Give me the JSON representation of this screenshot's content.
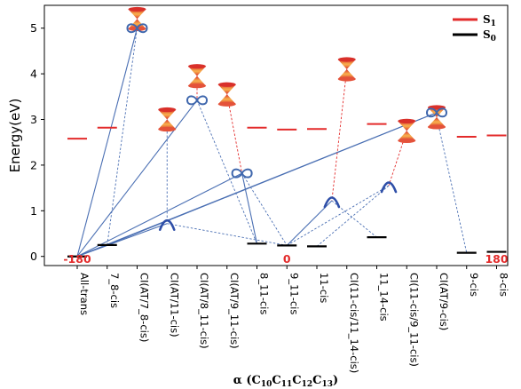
{
  "chart_data": {
    "type": "line",
    "xlabel": {
      "text": "α (C",
      "subs": [
        "10",
        "11",
        "12",
        "13"
      ]
    },
    "ylabel": "Energy(eV)",
    "ylim": [
      -0.2,
      5.5
    ],
    "yticks": [
      0,
      1,
      2,
      3,
      4,
      5
    ],
    "grid": false,
    "legend_position": "top-right",
    "legend": [
      {
        "label": "S",
        "sub": "1",
        "color": "#e32b2b"
      },
      {
        "label": "S",
        "sub": "0",
        "color": "#000000"
      }
    ],
    "colors": {
      "s1": "#e32b2b",
      "s0": "#000000",
      "link": "#4a6fb3",
      "red_text": "#e32b2b"
    },
    "categories": [
      {
        "label": "All-trans",
        "color": "black"
      },
      {
        "label": "7_8-cis",
        "color": "black"
      },
      {
        "label": "CI(AT/7_8-cis)",
        "color": "red"
      },
      {
        "label": "CI(AT/11-cis)",
        "color": "red"
      },
      {
        "label": "CI(AT/8_11-cis)",
        "color": "red"
      },
      {
        "label": "CI(AT/9_11-cis)",
        "color": "red"
      },
      {
        "label": "8_11-cis",
        "color": "black"
      },
      {
        "label": "9_11-cis",
        "color": "black"
      },
      {
        "label": "11-cis",
        "color": "black"
      },
      {
        "label": "CI(11-cis/11_14-cis)",
        "color": "red"
      },
      {
        "label": "11_14-cis",
        "color": "black"
      },
      {
        "label": "CI(11-cis/9_11-cis)",
        "color": "red"
      },
      {
        "label": "CI(AT/9-cis)",
        "color": "red"
      },
      {
        "label": "9-cis",
        "color": "black"
      },
      {
        "label": "8-cis",
        "color": "black"
      }
    ],
    "s0_levels": [
      {
        "x": 0,
        "y": 0.0
      },
      {
        "x": 1,
        "y": 0.25
      },
      {
        "x": 6,
        "y": 0.28
      },
      {
        "x": 7,
        "y": 0.24
      },
      {
        "x": 8,
        "y": 0.22
      },
      {
        "x": 10,
        "y": 0.42
      },
      {
        "x": 13,
        "y": 0.08
      },
      {
        "x": 14,
        "y": 0.1
      }
    ],
    "s1_levels": [
      {
        "x": 0,
        "y": 2.58
      },
      {
        "x": 1,
        "y": 2.82
      },
      {
        "x": 6,
        "y": 2.82
      },
      {
        "x": 7,
        "y": 2.78
      },
      {
        "x": 8,
        "y": 2.79
      },
      {
        "x": 10,
        "y": 2.9
      },
      {
        "x": 13,
        "y": 2.62
      },
      {
        "x": 14,
        "y": 2.65
      }
    ],
    "conical_intersections": [
      {
        "x": 2,
        "y": 5.2
      },
      {
        "x": 3,
        "y": 3.0
      },
      {
        "x": 4,
        "y": 3.95
      },
      {
        "x": 5,
        "y": 3.55
      },
      {
        "x": 9,
        "y": 4.1
      },
      {
        "x": 11,
        "y": 2.75
      },
      {
        "x": 12,
        "y": 3.05
      }
    ],
    "transition_states": [
      {
        "type": "infinity",
        "x": 2,
        "y": 5.0
      },
      {
        "type": "arch",
        "x": 3,
        "y": 0.72
      },
      {
        "type": "infinity",
        "x": 4,
        "y": 3.42
      },
      {
        "type": "infinity",
        "x": 5.5,
        "y": 1.82
      },
      {
        "type": "arch",
        "x": 8.5,
        "y": 1.22
      },
      {
        "type": "arch",
        "x": 10.4,
        "y": 1.55
      },
      {
        "type": "infinity",
        "x": 12,
        "y": 3.15
      }
    ],
    "solid_links": [
      {
        "from": [
          0,
          0.0
        ],
        "to": [
          2,
          5.0
        ]
      },
      {
        "from": [
          0,
          0.0
        ],
        "to": [
          4,
          3.42
        ]
      },
      {
        "from": [
          0,
          0.0
        ],
        "to": [
          5.5,
          1.82
        ]
      },
      {
        "from": [
          0,
          0.0
        ],
        "to": [
          3,
          0.72
        ]
      },
      {
        "from": [
          0,
          0.0
        ],
        "to": [
          12,
          3.15
        ]
      },
      {
        "from": [
          0,
          0.0
        ],
        "to": [
          1,
          0.25
        ]
      },
      {
        "from": [
          1,
          0.25
        ],
        "to": [
          12,
          3.15
        ]
      },
      {
        "from": [
          5.5,
          1.82
        ],
        "to": [
          6,
          0.28
        ]
      },
      {
        "from": [
          7,
          0.24
        ],
        "to": [
          8.5,
          1.22
        ]
      }
    ],
    "dashed_links": [
      {
        "from": [
          1,
          0.25
        ],
        "to": [
          2,
          5.0
        ],
        "color": "link"
      },
      {
        "from": [
          2,
          5.2
        ],
        "to": [
          2,
          5.0
        ],
        "color": "red"
      },
      {
        "from": [
          3,
          3.0
        ],
        "to": [
          3,
          0.72
        ],
        "color": "link"
      },
      {
        "from": [
          4,
          3.95
        ],
        "to": [
          4,
          3.42
        ],
        "color": "red"
      },
      {
        "from": [
          4,
          3.42
        ],
        "to": [
          6,
          0.28
        ],
        "color": "link"
      },
      {
        "from": [
          5,
          3.55
        ],
        "to": [
          5.5,
          1.82
        ],
        "color": "red"
      },
      {
        "from": [
          5.5,
          1.82
        ],
        "to": [
          7,
          0.24
        ],
        "color": "link"
      },
      {
        "from": [
          3,
          0.72
        ],
        "to": [
          7,
          0.24
        ],
        "color": "link"
      },
      {
        "from": [
          9,
          4.1
        ],
        "to": [
          8.5,
          1.22
        ],
        "color": "red"
      },
      {
        "from": [
          8.5,
          1.22
        ],
        "to": [
          10,
          0.42
        ],
        "color": "link"
      },
      {
        "from": [
          11,
          2.75
        ],
        "to": [
          10.4,
          1.55
        ],
        "color": "red"
      },
      {
        "from": [
          10.4,
          1.55
        ],
        "to": [
          7,
          0.24
        ],
        "color": "link"
      },
      {
        "from": [
          10.4,
          1.55
        ],
        "to": [
          8,
          0.22
        ],
        "color": "link"
      },
      {
        "from": [
          12,
          3.05
        ],
        "to": [
          13,
          0.08
        ],
        "color": "link"
      }
    ],
    "angle_labels": [
      {
        "text": "-180",
        "x": 0
      },
      {
        "text": "0",
        "x": 7
      },
      {
        "text": "180",
        "x": 14
      }
    ]
  }
}
